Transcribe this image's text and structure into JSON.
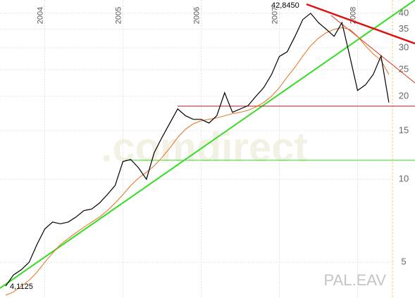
{
  "chart_data": {
    "type": "line",
    "categories": [
      null,
      null,
      null,
      null,
      null,
      "2004",
      null,
      null,
      null,
      null,
      null,
      null,
      null,
      null,
      null,
      "2005",
      null,
      null,
      null,
      null,
      null,
      null,
      null,
      null,
      null,
      "2006",
      null,
      null,
      null,
      null,
      null,
      null,
      null,
      null,
      null,
      "2007",
      null,
      null,
      null,
      null,
      null,
      null,
      null,
      null,
      null,
      "2008",
      null,
      null,
      null,
      null
    ],
    "series": [
      {
        "color": "#000000",
        "values": [
          4.1,
          4.5,
          4.7,
          5.0,
          5.8,
          6.6,
          7.0,
          6.9,
          7.0,
          7.3,
          7.7,
          7.8,
          8.2,
          8.8,
          9.5,
          11.6,
          11.8,
          11.0,
          10.0,
          12.5,
          14.2,
          16.0,
          18.0,
          17.0,
          16.5,
          16.5,
          16.0,
          17.0,
          20.6,
          17.5,
          18.0,
          18.5,
          20.0,
          21.5,
          24.0,
          27.9,
          29.0,
          33.0,
          38.0,
          40.0,
          37.0,
          35.0,
          33.0,
          37.0,
          28.0,
          21.0,
          22.0,
          24.0,
          28.0,
          19.0
        ]
      },
      {
        "color": "#e8701e",
        "values": [
          3.8,
          3.9,
          4.1,
          4.3,
          4.6,
          5.0,
          5.4,
          5.8,
          6.1,
          6.4,
          6.7,
          7.0,
          7.3,
          7.7,
          8.2,
          8.8,
          9.5,
          10.1,
          10.6,
          11.2,
          12.0,
          13.0,
          14.2,
          15.2,
          15.9,
          16.3,
          16.5,
          16.7,
          17.0,
          17.3,
          17.5,
          17.8,
          18.3,
          19.0,
          20.0,
          21.5,
          23.5,
          25.5,
          28.0,
          30.5,
          32.5,
          34.0,
          35.0,
          35.5,
          35.0,
          33.0,
          30.5,
          28.5,
          27.0,
          24.0
        ]
      }
    ],
    "ylim": [
      3.8,
      44.7
    ],
    "yticks": [
      5,
      10,
      15,
      20,
      25,
      30,
      35,
      40
    ],
    "log_scale": true,
    "grid": true,
    "annotations": [
      "42,8450",
      "4,1125"
    ],
    "watermark": ".comdirect",
    "symbol": "PAL.EAV"
  }
}
